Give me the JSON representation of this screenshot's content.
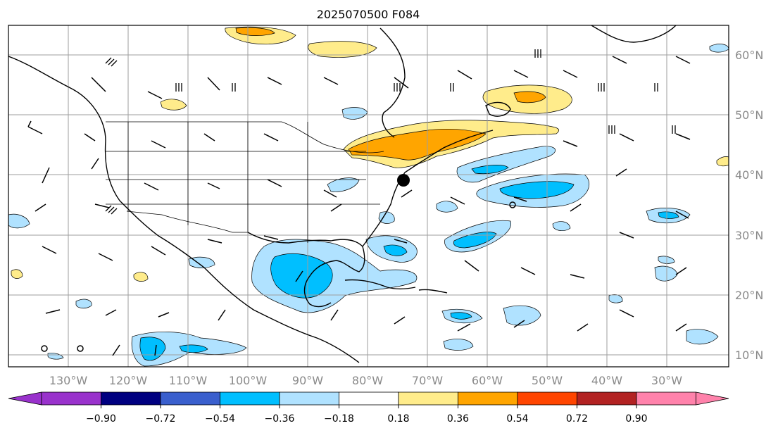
{
  "title": "2025070500 F084",
  "map": {
    "lon_labels": [
      "130°W",
      "120°W",
      "110°W",
      "100°W",
      "90°W",
      "80°W",
      "70°W",
      "60°W",
      "50°W",
      "40°W",
      "30°W"
    ],
    "lat_labels": [
      "60°N",
      "50°N",
      "40°N",
      "30°N",
      "20°N",
      "10°N"
    ],
    "lon_min": -137,
    "lon_max": -16,
    "lat_min": 8,
    "lat_max": 65,
    "gridlines": true,
    "marker": {
      "lon": -74.5,
      "lat": 39.2,
      "label": ""
    }
  },
  "colorbar": {
    "ticks": [
      "−0.90",
      "−0.72",
      "−0.54",
      "−0.36",
      "−0.18",
      "0.18",
      "0.36",
      "0.54",
      "0.72",
      "0.90"
    ],
    "colors": [
      "#9932cc",
      "#000080",
      "#3a5fcd",
      "#00bfff",
      "#b0e2ff",
      "#ffffff",
      "#ffec8b",
      "#ffa500",
      "#ff4500",
      "#b22222",
      "#ff82ab"
    ],
    "extend": "both"
  },
  "palette": {
    "light_blue": "#b0e2ff",
    "blue": "#00bfff",
    "light_yellow": "#ffec8b",
    "orange": "#ffa500",
    "coast": "#000000",
    "grid": "#9e9e9e"
  }
}
